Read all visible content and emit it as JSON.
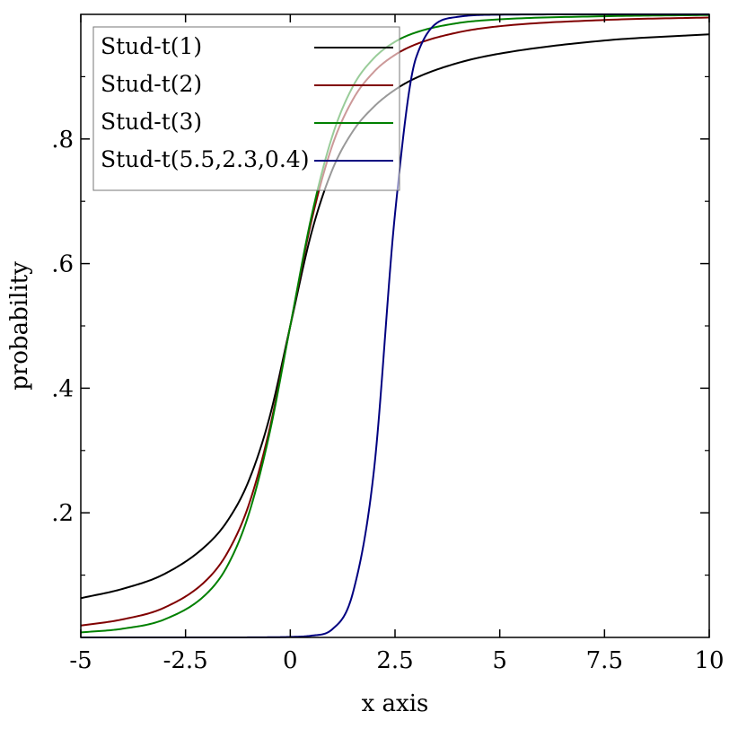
{
  "chart_data": {
    "type": "line",
    "title": "",
    "xlabel": "x axis",
    "ylabel": "probability",
    "xlim": [
      -5,
      10
    ],
    "ylim": [
      0,
      1
    ],
    "grid": false,
    "legend_position": "top-left",
    "x_ticks": [
      {
        "value": -5,
        "label": "-5"
      },
      {
        "value": -2.5,
        "label": "-2.5"
      },
      {
        "value": 0,
        "label": "0"
      },
      {
        "value": 2.5,
        "label": "2.5"
      },
      {
        "value": 5,
        "label": "5"
      },
      {
        "value": 7.5,
        "label": "7.5"
      },
      {
        "value": 10,
        "label": "10"
      }
    ],
    "y_ticks": [
      {
        "value": 0.2,
        "label": ".2"
      },
      {
        "value": 0.4,
        "label": ".4"
      },
      {
        "value": 0.6,
        "label": ".6"
      },
      {
        "value": 0.8,
        "label": ".8"
      }
    ],
    "y_minor_ticks": [
      0.1,
      0.3,
      0.5,
      0.7,
      0.9
    ],
    "series": [
      {
        "name": "Stud-t(1)",
        "color": "#000000",
        "df": 1,
        "loc": 0,
        "scale": 1
      },
      {
        "name": "Stud-t(2)",
        "color": "#800000",
        "df": 2,
        "loc": 0,
        "scale": 1
      },
      {
        "name": "Stud-t(3)",
        "color": "#008000",
        "df": 3,
        "loc": 0,
        "scale": 1
      },
      {
        "name": "Stud-t(5.5,2.3,0.4)",
        "color": "#000080",
        "df": 5.5,
        "loc": 2.3,
        "scale": 0.4
      }
    ],
    "x": [
      -5,
      -4,
      -3,
      -2,
      -1.5,
      -1,
      -0.5,
      0,
      0.5,
      1,
      1.5,
      2,
      2.5,
      3,
      4,
      5,
      7.5,
      10
    ],
    "cdf_values": [
      [
        0.063,
        0.078,
        0.102,
        0.148,
        0.187,
        0.25,
        0.352,
        0.5,
        0.648,
        0.75,
        0.813,
        0.852,
        0.879,
        0.898,
        0.922,
        0.937,
        0.958,
        0.968
      ],
      [
        0.019,
        0.029,
        0.048,
        0.092,
        0.136,
        0.211,
        0.333,
        0.5,
        0.667,
        0.789,
        0.864,
        0.908,
        0.935,
        0.952,
        0.971,
        0.981,
        0.991,
        0.995
      ],
      [
        0.008,
        0.014,
        0.029,
        0.07,
        0.115,
        0.196,
        0.326,
        0.5,
        0.674,
        0.804,
        0.885,
        0.93,
        0.956,
        0.971,
        0.986,
        0.992,
        0.997,
        0.999
      ],
      [
        0,
        0,
        0,
        0,
        0,
        0.0001,
        0.0003,
        0.0008,
        0.0028,
        0.013,
        0.073,
        0.27,
        0.68,
        0.93,
        0.996,
        0.9995,
        1,
        1
      ]
    ]
  }
}
